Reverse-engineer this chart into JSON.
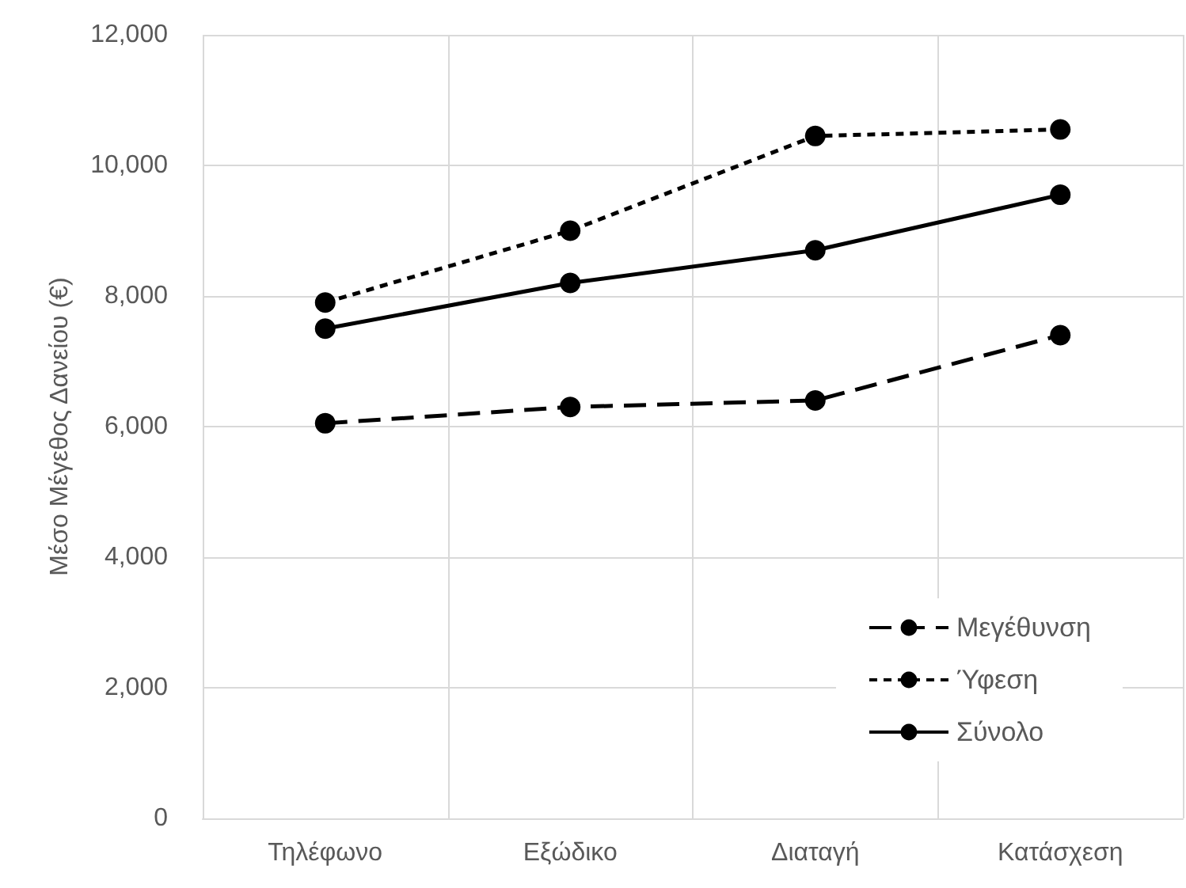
{
  "chart_data": {
    "type": "line",
    "ylabel": "Μέσο Μέγεθος Δανείου (€)",
    "categories": [
      "Τηλέφωνο",
      "Εξώδικο",
      "Διαταγή",
      "Κατάσχεση"
    ],
    "series": [
      {
        "name": "Μεγέθυνση",
        "color": "#000000",
        "line_style": "dashed",
        "values": [
          6050,
          6300,
          6400,
          7400
        ]
      },
      {
        "name": "Ύφεση",
        "color": "#000000",
        "line_style": "dotted",
        "values": [
          7900,
          9000,
          10450,
          10550
        ]
      },
      {
        "name": "Σύνολο",
        "color": "#000000",
        "line_style": "solid",
        "values": [
          7500,
          8200,
          8700,
          9550
        ]
      }
    ],
    "ylim": [
      0,
      12000
    ],
    "yticks": [
      0,
      {
        "value": 2000,
        "label": "2,000"
      },
      {
        "value": 4000,
        "label": "4,000"
      },
      {
        "value": 6000,
        "label": "6,000"
      },
      {
        "value": 8000,
        "label": "8,000"
      },
      {
        "value": 10000,
        "label": "10,000"
      },
      {
        "value": 12000,
        "label": "12,000"
      }
    ],
    "grid": true,
    "legend": "bottom right",
    "marker": "circle"
  }
}
